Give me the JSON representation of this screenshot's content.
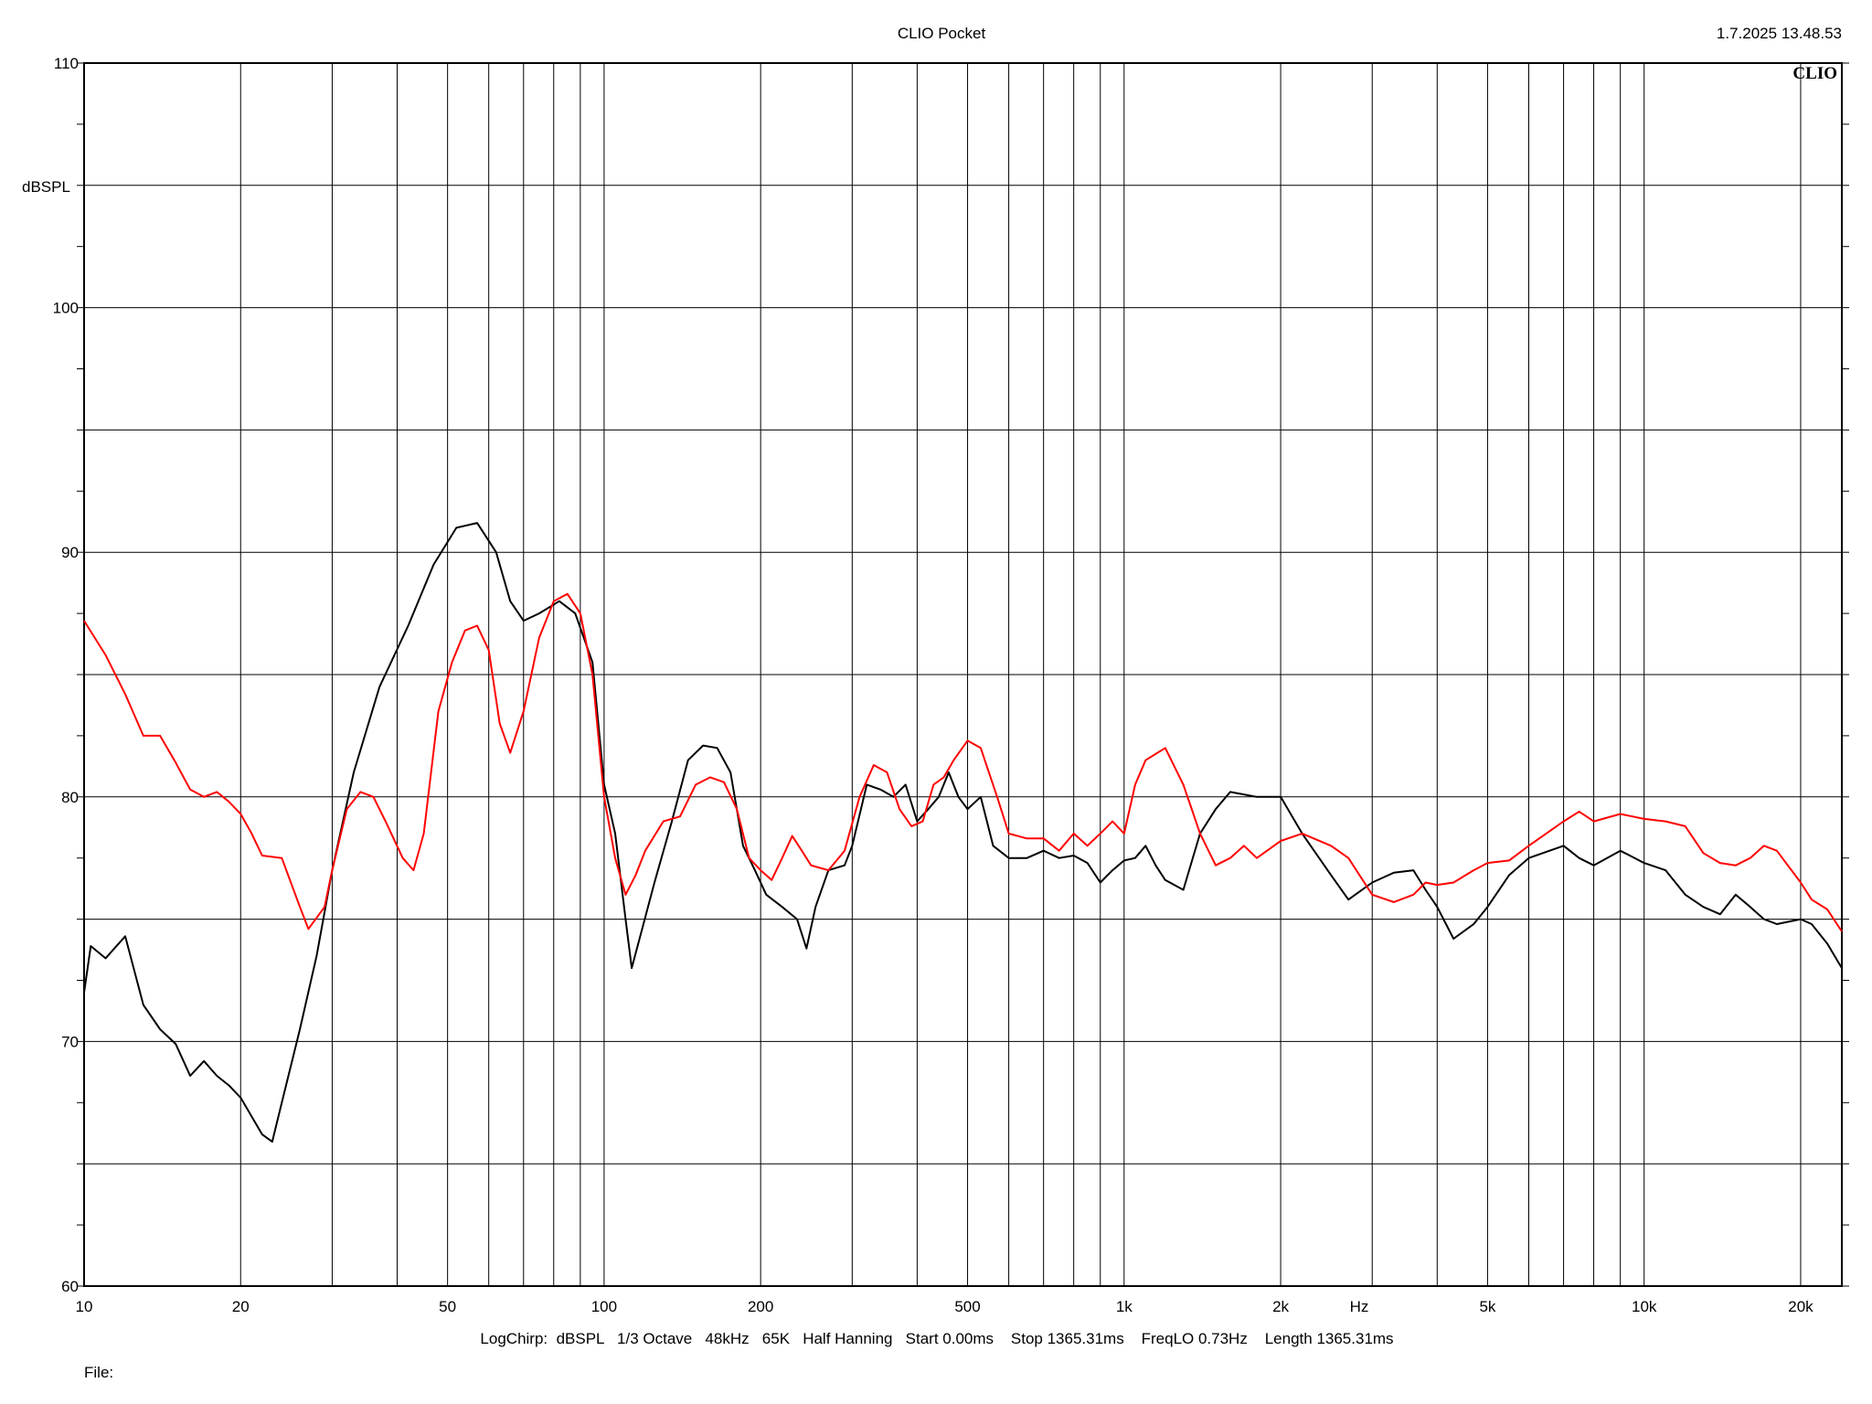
{
  "header": {
    "title": "CLIO Pocket",
    "datetime": "1.7.2025 13.48.53",
    "logo": "CLIO"
  },
  "footer": {
    "settings": "LogChirp:  dBSPL   1/3 Octave   48kHz   65K   Half Hanning   Start 0.00ms    Stop 1365.31ms    FreqLO 0.73Hz    Length 1365.31ms",
    "file_label": "File:"
  },
  "chart_data": {
    "type": "line",
    "title": "CLIO Pocket",
    "xlabel": "Hz",
    "ylabel": "dBSPL",
    "xscale": "log",
    "xlim": [
      10,
      24000
    ],
    "ylim": [
      60,
      110
    ],
    "grid": true,
    "x_tick_labels": [
      {
        "v": 10,
        "t": "10"
      },
      {
        "v": 20,
        "t": "20"
      },
      {
        "v": 50,
        "t": "50"
      },
      {
        "v": 100,
        "t": "100"
      },
      {
        "v": 200,
        "t": "200"
      },
      {
        "v": 500,
        "t": "500"
      },
      {
        "v": 1000,
        "t": "1k"
      },
      {
        "v": 2000,
        "t": "2k"
      },
      {
        "v": 5000,
        "t": "5k"
      },
      {
        "v": 10000,
        "t": "10k"
      },
      {
        "v": 20000,
        "t": "20k"
      }
    ],
    "y_tick_labels": [
      {
        "v": 110,
        "t": "110"
      },
      {
        "v": 100,
        "t": "100"
      },
      {
        "v": 90,
        "t": "90"
      },
      {
        "v": 80,
        "t": "80"
      },
      {
        "v": 70,
        "t": "70"
      },
      {
        "v": 60,
        "t": "60"
      }
    ],
    "series": [
      {
        "color": "#000000",
        "points": [
          [
            10,
            72.0
          ],
          [
            10.3,
            73.9
          ],
          [
            11,
            73.4
          ],
          [
            12,
            74.3
          ],
          [
            13,
            71.5
          ],
          [
            14,
            70.5
          ],
          [
            15,
            69.9
          ],
          [
            16,
            68.6
          ],
          [
            17,
            69.2
          ],
          [
            18,
            68.6
          ],
          [
            19,
            68.2
          ],
          [
            20,
            67.7
          ],
          [
            22,
            66.2
          ],
          [
            23,
            65.9
          ],
          [
            24,
            67.5
          ],
          [
            26,
            70.5
          ],
          [
            28,
            73.5
          ],
          [
            30,
            77.0
          ],
          [
            33,
            81.0
          ],
          [
            37,
            84.5
          ],
          [
            42,
            87.0
          ],
          [
            47,
            89.5
          ],
          [
            52,
            91.0
          ],
          [
            57,
            91.2
          ],
          [
            62,
            90.0
          ],
          [
            66,
            88.0
          ],
          [
            70,
            87.2
          ],
          [
            75,
            87.5
          ],
          [
            82,
            88.0
          ],
          [
            88,
            87.5
          ],
          [
            95,
            85.5
          ],
          [
            100,
            80.5
          ],
          [
            105,
            78.5
          ],
          [
            110,
            75.0
          ],
          [
            113,
            73.0
          ],
          [
            118,
            74.5
          ],
          [
            125,
            76.5
          ],
          [
            135,
            79.0
          ],
          [
            145,
            81.5
          ],
          [
            155,
            82.1
          ],
          [
            165,
            82.0
          ],
          [
            175,
            81.0
          ],
          [
            185,
            78.0
          ],
          [
            195,
            77.0
          ],
          [
            205,
            76.0
          ],
          [
            220,
            75.5
          ],
          [
            235,
            75.0
          ],
          [
            245,
            73.8
          ],
          [
            255,
            75.5
          ],
          [
            270,
            77.0
          ],
          [
            290,
            77.2
          ],
          [
            300,
            78.0
          ],
          [
            320,
            80.5
          ],
          [
            340,
            80.3
          ],
          [
            360,
            80.0
          ],
          [
            380,
            80.5
          ],
          [
            400,
            79.0
          ],
          [
            420,
            79.5
          ],
          [
            440,
            80.0
          ],
          [
            460,
            81.0
          ],
          [
            480,
            80.0
          ],
          [
            500,
            79.5
          ],
          [
            530,
            80.0
          ],
          [
            560,
            78.0
          ],
          [
            600,
            77.5
          ],
          [
            650,
            77.5
          ],
          [
            700,
            77.8
          ],
          [
            750,
            77.5
          ],
          [
            800,
            77.6
          ],
          [
            850,
            77.3
          ],
          [
            900,
            76.5
          ],
          [
            950,
            77.0
          ],
          [
            1000,
            77.4
          ],
          [
            1050,
            77.5
          ],
          [
            1100,
            78.0
          ],
          [
            1150,
            77.2
          ],
          [
            1200,
            76.6
          ],
          [
            1300,
            76.2
          ],
          [
            1400,
            78.5
          ],
          [
            1500,
            79.5
          ],
          [
            1600,
            80.2
          ],
          [
            1800,
            80.0
          ],
          [
            2000,
            80.0
          ],
          [
            2200,
            78.5
          ],
          [
            2500,
            76.8
          ],
          [
            2700,
            75.8
          ],
          [
            3000,
            76.5
          ],
          [
            3300,
            76.9
          ],
          [
            3600,
            77.0
          ],
          [
            3800,
            76.2
          ],
          [
            4000,
            75.5
          ],
          [
            4300,
            74.2
          ],
          [
            4700,
            74.8
          ],
          [
            5000,
            75.5
          ],
          [
            5500,
            76.8
          ],
          [
            6000,
            77.5
          ],
          [
            7000,
            78.0
          ],
          [
            7500,
            77.5
          ],
          [
            8000,
            77.2
          ],
          [
            9000,
            77.8
          ],
          [
            10000,
            77.3
          ],
          [
            11000,
            77.0
          ],
          [
            12000,
            76.0
          ],
          [
            13000,
            75.5
          ],
          [
            14000,
            75.2
          ],
          [
            15000,
            76.0
          ],
          [
            16000,
            75.5
          ],
          [
            17000,
            75.0
          ],
          [
            18000,
            74.8
          ],
          [
            20000,
            75.0
          ],
          [
            21000,
            74.8
          ],
          [
            22500,
            74.0
          ],
          [
            24000,
            73.0
          ]
        ]
      },
      {
        "color": "#ff0000",
        "points": [
          [
            10,
            87.2
          ],
          [
            11,
            85.8
          ],
          [
            12,
            84.2
          ],
          [
            13,
            82.5
          ],
          [
            14,
            82.5
          ],
          [
            15,
            81.4
          ],
          [
            16,
            80.3
          ],
          [
            17,
            80.0
          ],
          [
            18,
            80.2
          ],
          [
            19,
            79.8
          ],
          [
            20,
            79.3
          ],
          [
            21,
            78.5
          ],
          [
            22,
            77.6
          ],
          [
            24,
            77.5
          ],
          [
            26,
            75.5
          ],
          [
            27,
            74.6
          ],
          [
            29,
            75.5
          ],
          [
            30,
            77.0
          ],
          [
            32,
            79.5
          ],
          [
            34,
            80.2
          ],
          [
            36,
            80.0
          ],
          [
            38,
            79.0
          ],
          [
            41,
            77.5
          ],
          [
            43,
            77.0
          ],
          [
            45,
            78.5
          ],
          [
            48,
            83.5
          ],
          [
            51,
            85.5
          ],
          [
            54,
            86.8
          ],
          [
            57,
            87.0
          ],
          [
            60,
            86.0
          ],
          [
            63,
            83.0
          ],
          [
            66,
            81.8
          ],
          [
            70,
            83.5
          ],
          [
            75,
            86.5
          ],
          [
            80,
            88.0
          ],
          [
            85,
            88.3
          ],
          [
            90,
            87.5
          ],
          [
            95,
            85.0
          ],
          [
            100,
            80.0
          ],
          [
            105,
            77.5
          ],
          [
            110,
            76.0
          ],
          [
            115,
            76.8
          ],
          [
            120,
            77.8
          ],
          [
            130,
            79.0
          ],
          [
            140,
            79.2
          ],
          [
            150,
            80.5
          ],
          [
            160,
            80.8
          ],
          [
            170,
            80.6
          ],
          [
            180,
            79.5
          ],
          [
            190,
            77.5
          ],
          [
            200,
            77.0
          ],
          [
            210,
            76.6
          ],
          [
            220,
            77.5
          ],
          [
            230,
            78.4
          ],
          [
            240,
            77.8
          ],
          [
            250,
            77.2
          ],
          [
            270,
            77.0
          ],
          [
            290,
            77.8
          ],
          [
            310,
            80.0
          ],
          [
            330,
            81.3
          ],
          [
            350,
            81.0
          ],
          [
            370,
            79.5
          ],
          [
            390,
            78.8
          ],
          [
            410,
            79.0
          ],
          [
            430,
            80.5
          ],
          [
            450,
            80.8
          ],
          [
            470,
            81.5
          ],
          [
            500,
            82.3
          ],
          [
            530,
            82.0
          ],
          [
            570,
            80.0
          ],
          [
            600,
            78.5
          ],
          [
            650,
            78.3
          ],
          [
            700,
            78.3
          ],
          [
            750,
            77.8
          ],
          [
            800,
            78.5
          ],
          [
            850,
            78.0
          ],
          [
            900,
            78.5
          ],
          [
            950,
            79.0
          ],
          [
            1000,
            78.5
          ],
          [
            1050,
            80.5
          ],
          [
            1100,
            81.5
          ],
          [
            1200,
            82.0
          ],
          [
            1300,
            80.5
          ],
          [
            1400,
            78.5
          ],
          [
            1500,
            77.2
          ],
          [
            1600,
            77.5
          ],
          [
            1700,
            78.0
          ],
          [
            1800,
            77.5
          ],
          [
            2000,
            78.2
          ],
          [
            2200,
            78.5
          ],
          [
            2500,
            78.0
          ],
          [
            2700,
            77.5
          ],
          [
            3000,
            76.0
          ],
          [
            3300,
            75.7
          ],
          [
            3600,
            76.0
          ],
          [
            3800,
            76.5
          ],
          [
            4000,
            76.4
          ],
          [
            4300,
            76.5
          ],
          [
            4700,
            77.0
          ],
          [
            5000,
            77.3
          ],
          [
            5500,
            77.4
          ],
          [
            6000,
            78.0
          ],
          [
            7000,
            79.0
          ],
          [
            7500,
            79.4
          ],
          [
            8000,
            79.0
          ],
          [
            9000,
            79.3
          ],
          [
            10000,
            79.1
          ],
          [
            11000,
            79.0
          ],
          [
            12000,
            78.8
          ],
          [
            13000,
            77.7
          ],
          [
            14000,
            77.3
          ],
          [
            15000,
            77.2
          ],
          [
            16000,
            77.5
          ],
          [
            17000,
            78.0
          ],
          [
            18000,
            77.8
          ],
          [
            20000,
            76.5
          ],
          [
            21000,
            75.8
          ],
          [
            22500,
            75.4
          ],
          [
            24000,
            74.5
          ]
        ]
      }
    ]
  }
}
